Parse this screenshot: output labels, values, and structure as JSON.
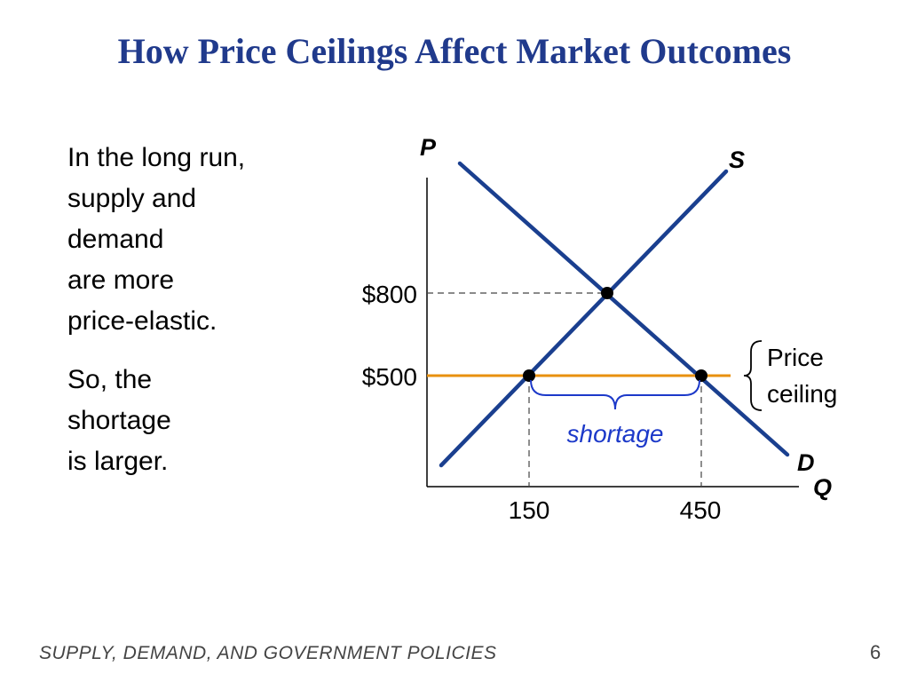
{
  "title": "How Price Ceilings Affect Market Outcomes",
  "body": {
    "paragraph1": [
      "In the long run,",
      "supply and",
      "demand",
      "are more",
      "price-elastic."
    ],
    "paragraph2": [
      "So, the",
      "shortage",
      "is larger."
    ]
  },
  "graph": {
    "axis_p": "P",
    "axis_q": "Q",
    "supply_label": "S",
    "demand_label": "D",
    "price_high": "$800",
    "price_low": "$500",
    "quantity_supplied": "150",
    "quantity_demanded": "450",
    "ceiling_label": [
      "Price",
      "ceiling"
    ],
    "shortage_label": "shortage"
  },
  "colors": {
    "title": "#203a8c",
    "curves": "#1a3f8f",
    "ceiling_line": "#e8900f",
    "shortage_text": "#1c39c9",
    "brace": "#1c39c9"
  },
  "footer": {
    "text": "SUPPLY, DEMAND, AND GOVERNMENT POLICIES",
    "page": "6"
  }
}
